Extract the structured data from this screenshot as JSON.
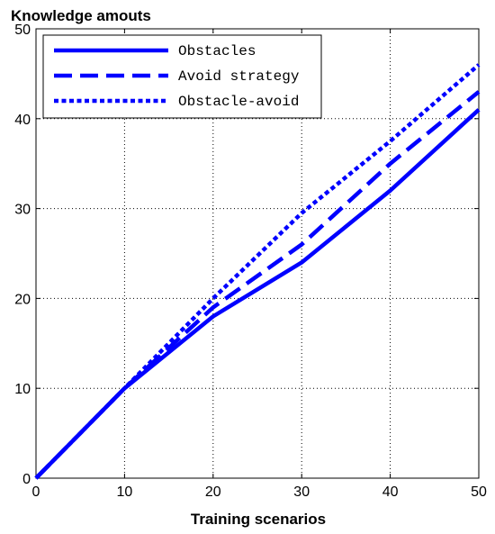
{
  "chart_data": {
    "type": "line",
    "ylabel": "Knowledge amouts",
    "xlabel": "Training scenarios",
    "xlim": [
      0,
      50
    ],
    "ylim": [
      0,
      50
    ],
    "x_ticks": [
      "0",
      "10",
      "20",
      "30",
      "40",
      "50"
    ],
    "y_ticks": [
      "0",
      "10",
      "20",
      "30",
      "40",
      "50"
    ],
    "grid": true,
    "legend_position": "top-left",
    "x": [
      0,
      10,
      20,
      30,
      40,
      50
    ],
    "series": [
      {
        "name": "Obstacles",
        "style": "solid",
        "color": "#0000ff",
        "values": [
          0,
          10,
          18,
          24,
          32,
          41
        ]
      },
      {
        "name": "Avoid strategy",
        "style": "dashed",
        "color": "#0000ff",
        "values": [
          0,
          10,
          19,
          26,
          35,
          43
        ]
      },
      {
        "name": "Obstacle-avoid",
        "style": "dotted",
        "color": "#0000ff",
        "values": [
          0,
          10,
          20,
          29.5,
          37.5,
          46
        ]
      }
    ]
  }
}
